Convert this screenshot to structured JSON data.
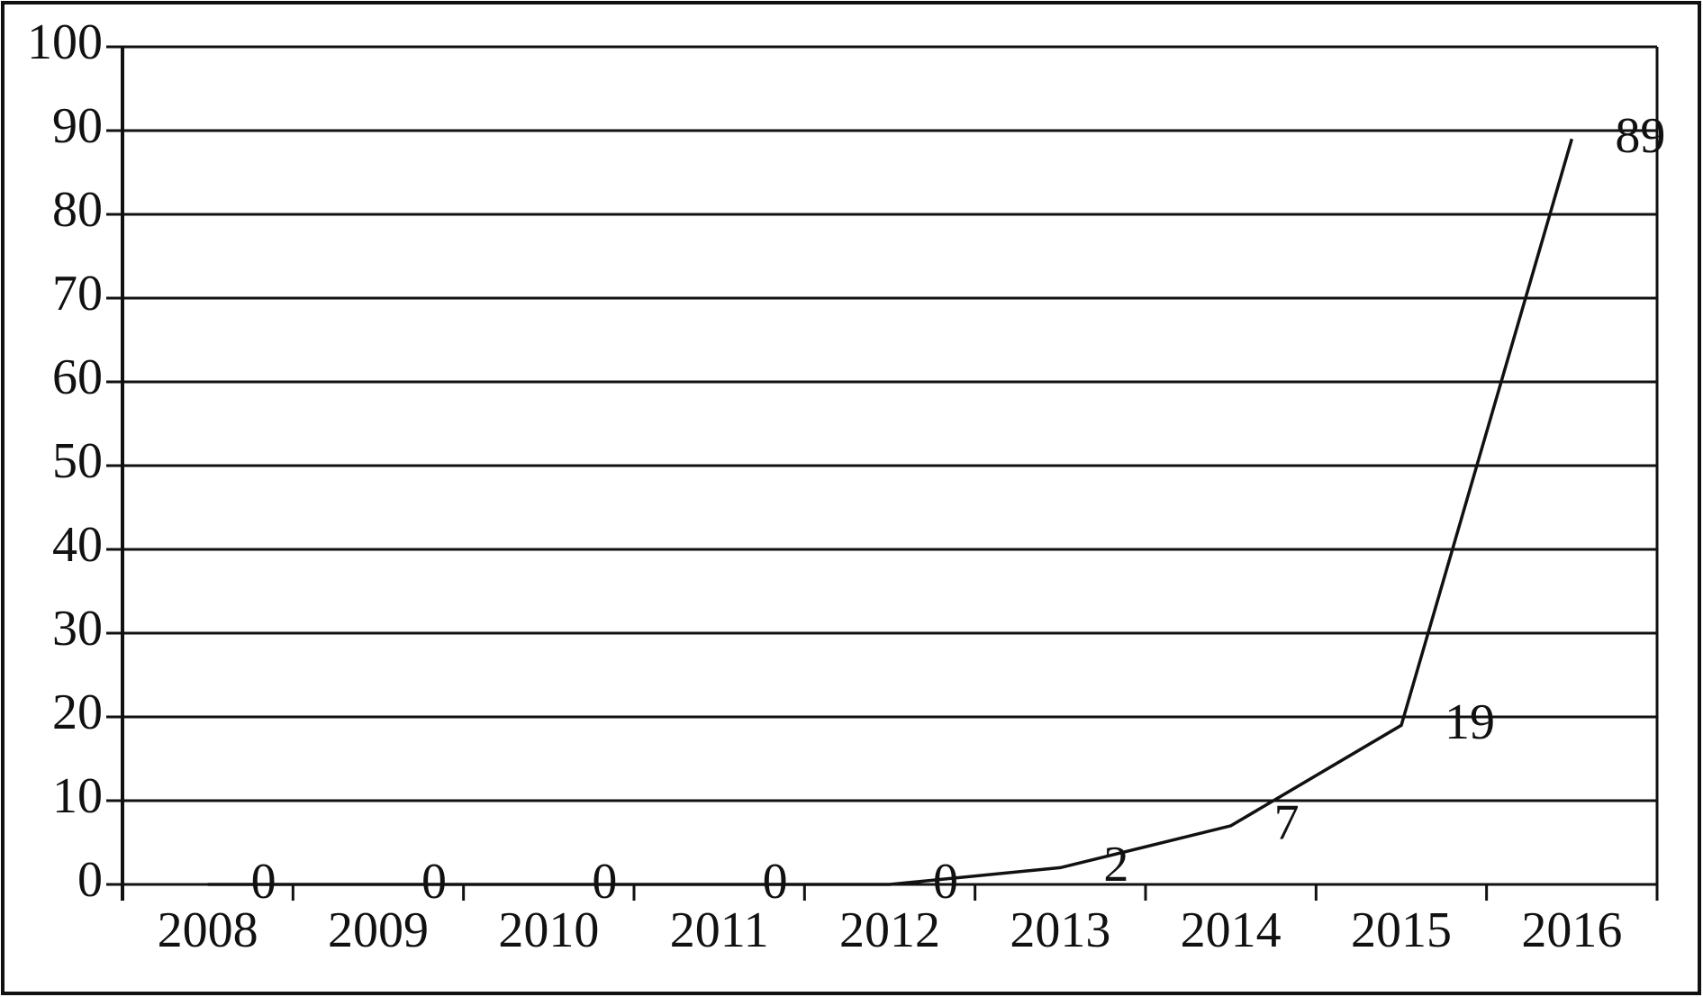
{
  "chart_data": {
    "type": "line",
    "categories": [
      "2008",
      "2009",
      "2010",
      "2011",
      "2012",
      "2013",
      "2014",
      "2015",
      "2016"
    ],
    "values": [
      0,
      0,
      0,
      0,
      0,
      2,
      7,
      19,
      89
    ],
    "color": "#111111",
    "ylim": [
      0,
      100
    ],
    "yticks": [
      0,
      10,
      20,
      30,
      40,
      50,
      60,
      70,
      80,
      90,
      100
    ],
    "grid": true
  }
}
